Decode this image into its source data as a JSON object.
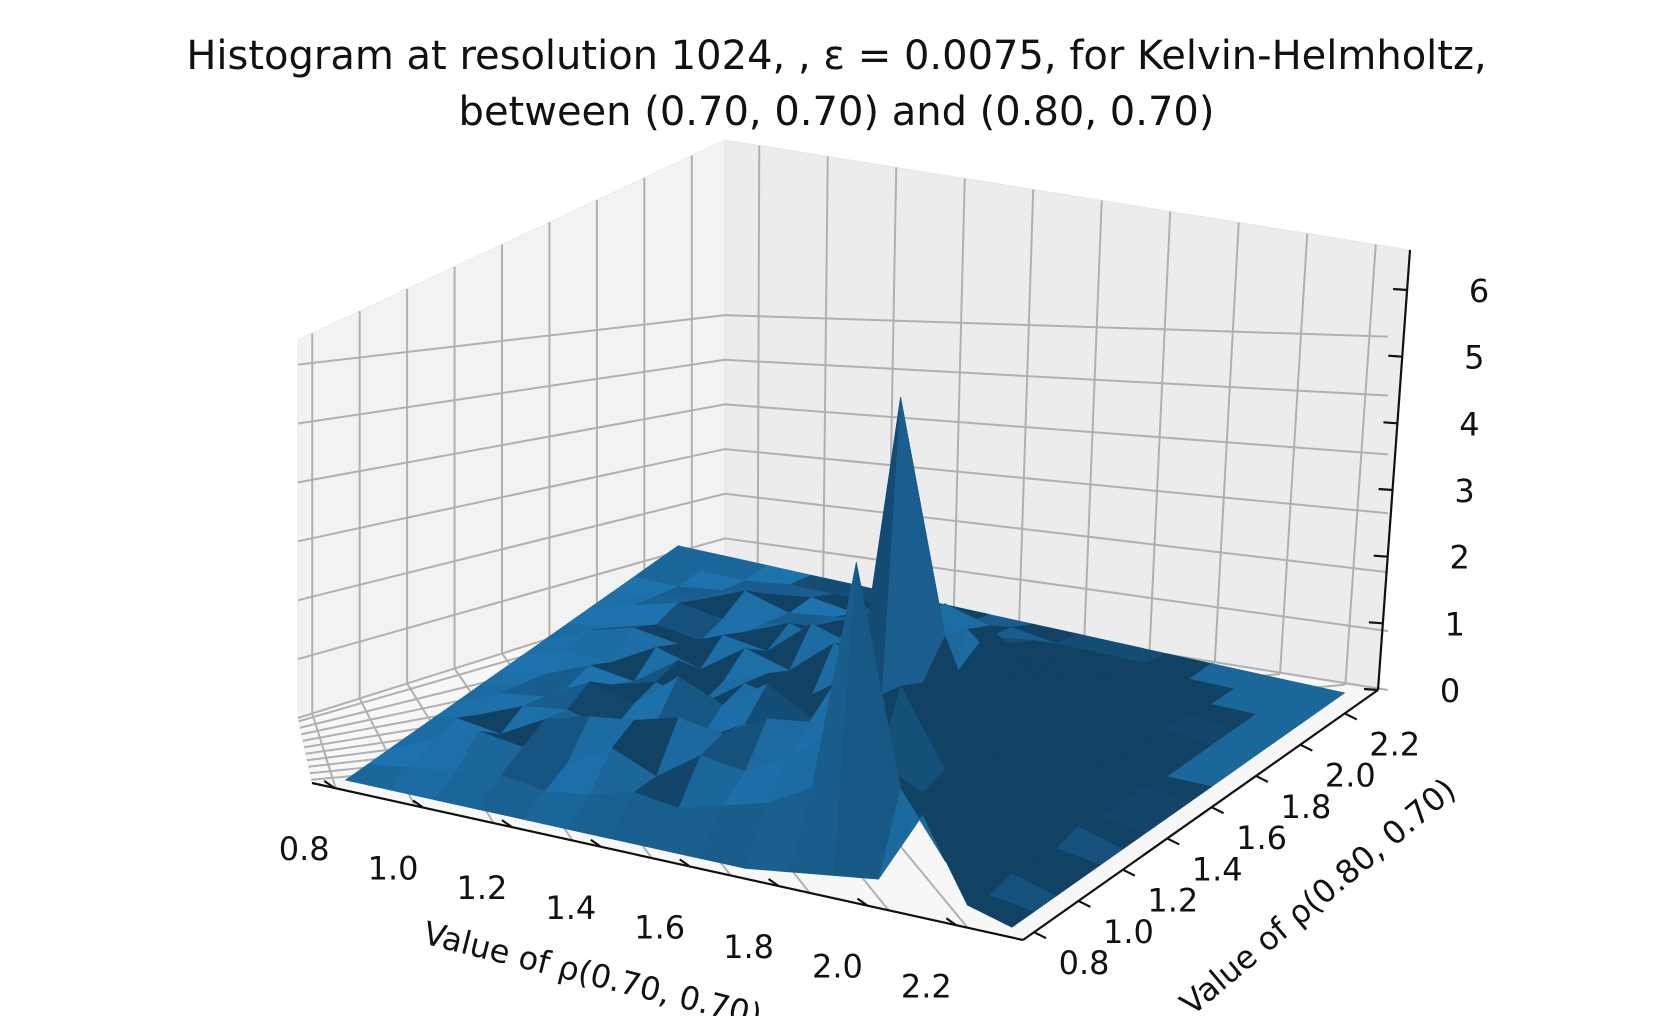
{
  "chart_data": {
    "type": "surface",
    "title": "Histogram at resolution 1024, , ε = 0.0075, for Kelvin-Helmholtz,",
    "subtitle": "between (0.70, 0.70) and (0.80, 0.70)",
    "xlabel": "Value of ρ(0.70, 0.70)",
    "ylabel": "Value of ρ(0.80, 0.70)",
    "zlabel": "",
    "x_ticks": [
      "0.8",
      "1.0",
      "1.2",
      "1.4",
      "1.6",
      "1.8",
      "2.0",
      "2.2"
    ],
    "y_ticks": [
      "0.8",
      "1.0",
      "1.2",
      "1.4",
      "1.6",
      "1.8",
      "2.0",
      "2.2"
    ],
    "z_ticks": [
      "0",
      "1",
      "2",
      "3",
      "4",
      "5",
      "6"
    ],
    "xlim": [
      0.75,
      2.35
    ],
    "ylim": [
      0.75,
      2.35
    ],
    "zlim": [
      0,
      6.6
    ],
    "grid": true,
    "surface_color": "#1f77b4",
    "x": [
      0.8,
      0.9,
      1.0,
      1.1,
      1.2,
      1.3,
      1.4,
      1.5,
      1.6,
      1.7,
      1.8,
      1.9,
      2.0,
      2.1,
      2.2,
      2.3
    ],
    "y": [
      0.8,
      0.9,
      1.0,
      1.1,
      1.2,
      1.3,
      1.4,
      1.5,
      1.6,
      1.7,
      1.8,
      1.9,
      2.0,
      2.1,
      2.2,
      2.3
    ],
    "z": [
      [
        0.0,
        0.0,
        0.0,
        0.0,
        0.0,
        0.0,
        0.0,
        0.0,
        0.0,
        0.0,
        0.1,
        0.2,
        0.3,
        1.5,
        0.2,
        0.0
      ],
      [
        0.0,
        0.1,
        0.2,
        0.3,
        0.2,
        0.3,
        0.5,
        0.4,
        0.6,
        0.8,
        1.2,
        5.0,
        1.5,
        0.5,
        0.1,
        0.0
      ],
      [
        0.0,
        0.3,
        0.6,
        0.5,
        0.4,
        0.8,
        0.5,
        1.0,
        0.9,
        1.3,
        1.8,
        1.5,
        1.2,
        0.6,
        0.2,
        0.0
      ],
      [
        0.0,
        0.4,
        0.3,
        0.7,
        0.9,
        1.0,
        1.2,
        1.1,
        1.5,
        1.6,
        2.0,
        2.5,
        1.3,
        0.8,
        0.2,
        0.0
      ],
      [
        0.0,
        0.2,
        0.5,
        0.6,
        0.4,
        0.7,
        0.6,
        1.0,
        0.8,
        1.2,
        1.0,
        2.3,
        1.0,
        0.6,
        0.1,
        0.0
      ],
      [
        0.0,
        0.3,
        0.4,
        0.8,
        0.6,
        1.2,
        0.9,
        1.4,
        1.0,
        1.5,
        6.5,
        2.8,
        1.1,
        0.5,
        0.2,
        0.0
      ],
      [
        0.0,
        0.2,
        0.3,
        0.5,
        0.7,
        0.5,
        1.0,
        0.8,
        1.3,
        1.0,
        3.0,
        1.5,
        0.7,
        0.3,
        0.1,
        0.0
      ],
      [
        0.0,
        0.1,
        0.4,
        0.3,
        0.8,
        0.6,
        0.9,
        0.7,
        1.2,
        1.0,
        1.3,
        2.4,
        0.9,
        0.4,
        0.1,
        0.0
      ],
      [
        0.0,
        0.2,
        0.2,
        0.6,
        0.4,
        0.9,
        0.7,
        1.3,
        1.1,
        1.6,
        2.0,
        1.4,
        1.0,
        0.3,
        0.1,
        0.0
      ],
      [
        0.0,
        0.3,
        0.5,
        0.4,
        0.7,
        0.6,
        1.2,
        1.0,
        1.5,
        2.0,
        1.8,
        1.2,
        0.8,
        0.2,
        0.0,
        0.0
      ],
      [
        0.0,
        0.1,
        0.3,
        0.2,
        0.5,
        0.8,
        0.6,
        1.0,
        0.9,
        1.2,
        1.0,
        0.9,
        0.6,
        0.2,
        0.0,
        0.0
      ],
      [
        0.0,
        0.2,
        0.4,
        0.3,
        0.4,
        0.5,
        0.8,
        0.6,
        1.0,
        0.8,
        0.7,
        0.6,
        0.4,
        0.1,
        0.0,
        0.0
      ],
      [
        0.0,
        0.1,
        0.2,
        0.5,
        0.3,
        0.4,
        0.5,
        0.7,
        0.5,
        0.6,
        0.5,
        0.4,
        0.2,
        0.1,
        0.0,
        0.0
      ],
      [
        0.0,
        0.0,
        0.1,
        0.2,
        0.3,
        0.2,
        0.3,
        0.4,
        0.3,
        0.4,
        0.3,
        0.2,
        0.1,
        0.0,
        0.0,
        0.0
      ],
      [
        0.0,
        0.0,
        0.0,
        0.1,
        0.1,
        0.1,
        0.2,
        0.1,
        0.2,
        0.1,
        0.1,
        0.1,
        0.0,
        0.0,
        0.0,
        0.0
      ],
      [
        0.0,
        0.0,
        0.0,
        0.0,
        0.0,
        0.0,
        0.0,
        0.0,
        0.0,
        0.0,
        0.0,
        0.0,
        0.0,
        0.0,
        0.0,
        0.0
      ]
    ]
  }
}
